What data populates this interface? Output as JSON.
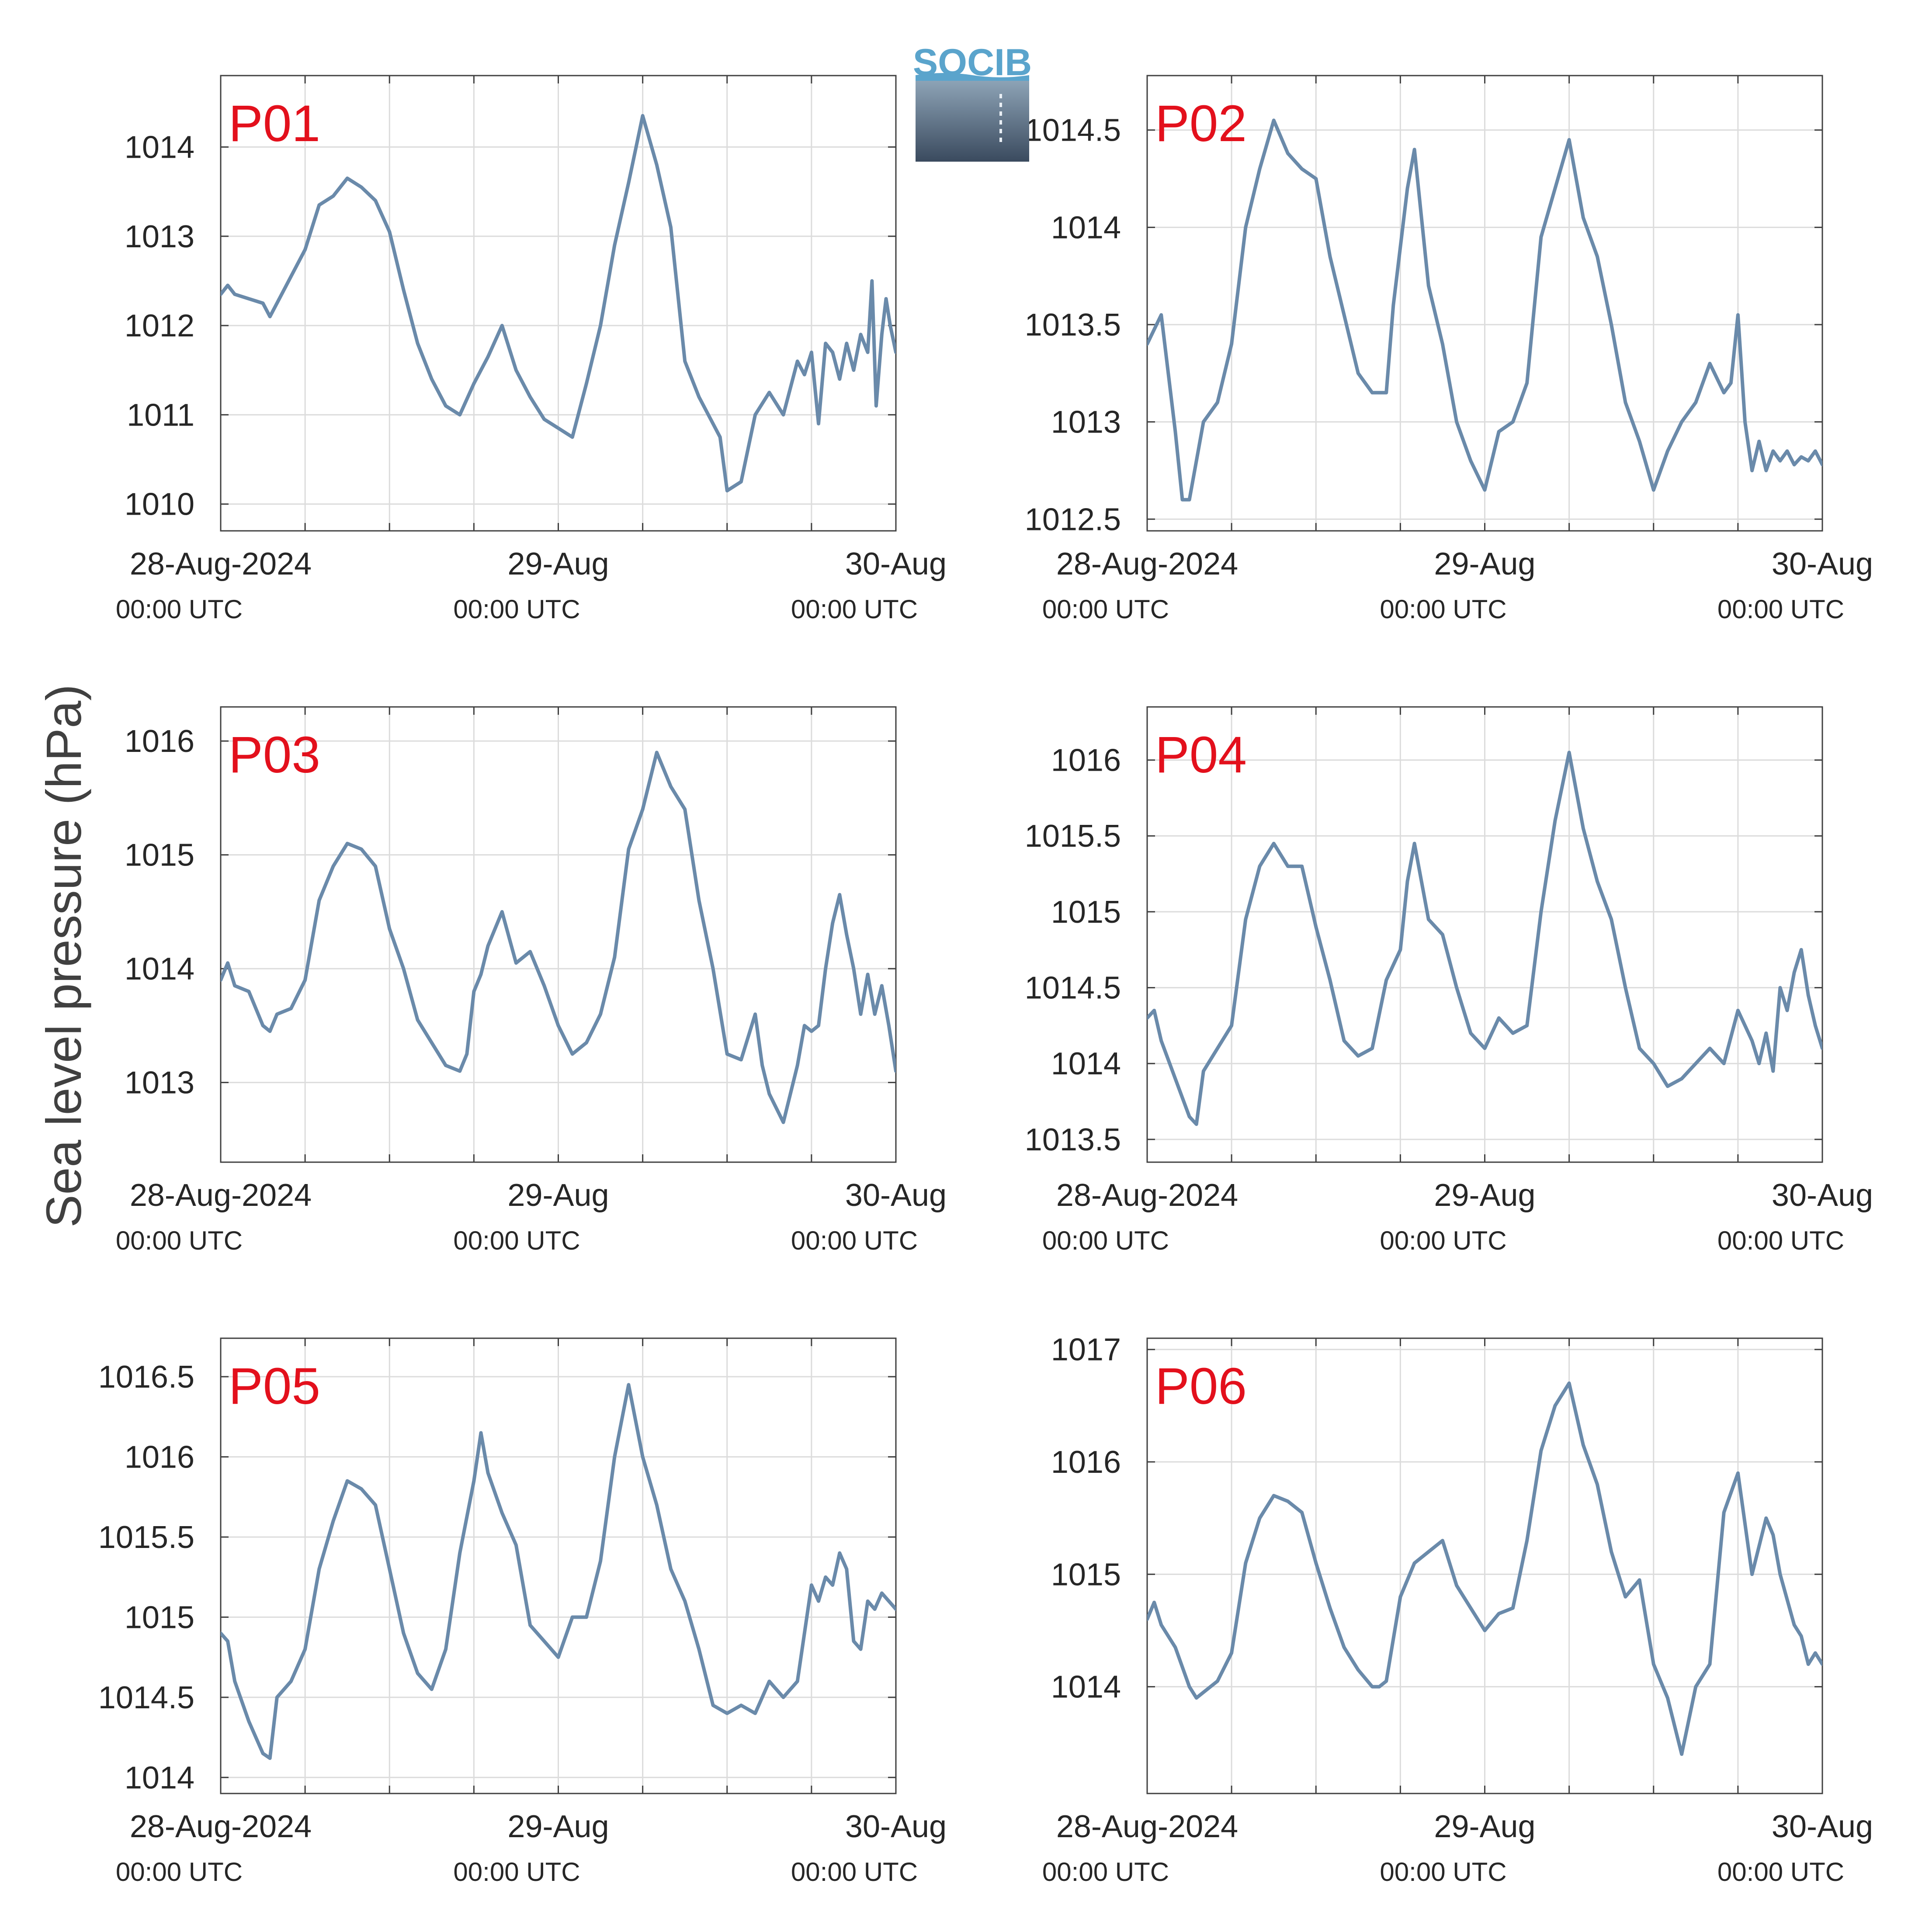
{
  "ylabel": "Sea level pressure (hPa)",
  "logo": {
    "text": "SOCIB"
  },
  "colors": {
    "line": "#6a8aaa",
    "panel_label": "#e3101c",
    "grid": "#dcdcdc",
    "axis": "#404040",
    "logo_text": "#5aa4cc",
    "logo_top": "#8da3b6",
    "logo_bottom": "#3a4a5e"
  },
  "chart_data": [
    {
      "type": "line",
      "panel": "P01",
      "grid": true,
      "xlim": [
        "2024-08-28T00:00",
        "2024-08-30T00:00"
      ],
      "xticks": [
        {
          "label": "28-Aug-2024",
          "sub": "00:00 UTC"
        },
        {
          "label": "29-Aug",
          "sub": "00:00 UTC"
        },
        {
          "label": "30-Aug",
          "sub": "00:00 UTC"
        }
      ],
      "ylim": [
        1009.7,
        1014.8
      ],
      "yticks": [
        1010,
        1011,
        1012,
        1013,
        1014
      ],
      "ytick_labels": [
        "1010",
        "1011",
        "1012",
        "1013",
        "1014"
      ],
      "x_hours": [
        0,
        0.5,
        1,
        2,
        3,
        3.5,
        4,
        5,
        6,
        7,
        8,
        9,
        10,
        11,
        12,
        13,
        14,
        15,
        16,
        17,
        18,
        19,
        20,
        21,
        22,
        23,
        24,
        25,
        26,
        27,
        28,
        29,
        30,
        31,
        32,
        33,
        34,
        35,
        35.5,
        36,
        37,
        38,
        39,
        40,
        41,
        41.5,
        42,
        42.5,
        43,
        43.5,
        44,
        44.5,
        45,
        45.5,
        46,
        46.3,
        46.6,
        47,
        47.3,
        47.6,
        48
      ],
      "values": [
        1012.35,
        1012.45,
        1012.35,
        1012.3,
        1012.25,
        1012.1,
        1012.25,
        1012.55,
        1012.85,
        1013.35,
        1013.45,
        1013.65,
        1013.55,
        1013.4,
        1013.05,
        1012.4,
        1011.8,
        1011.4,
        1011.1,
        1011.0,
        1011.35,
        1011.65,
        1012.0,
        1011.5,
        1011.2,
        1010.95,
        1010.85,
        1010.75,
        1011.35,
        1012.0,
        1012.9,
        1013.6,
        1014.35,
        1013.8,
        1013.1,
        1011.6,
        1011.2,
        1010.9,
        1010.75,
        1010.15,
        1010.25,
        1011.0,
        1011.25,
        1011.0,
        1011.6,
        1011.45,
        1011.7,
        1010.9,
        1011.8,
        1011.7,
        1011.4,
        1011.8,
        1011.5,
        1011.9,
        1011.7,
        1012.5,
        1011.1,
        1011.9,
        1012.3,
        1012.0,
        1011.7
      ]
    },
    {
      "type": "line",
      "panel": "P02",
      "grid": true,
      "xlim": [
        "2024-08-28T00:00",
        "2024-08-30T00:00"
      ],
      "xticks": [
        {
          "label": "28-Aug-2024",
          "sub": "00:00 UTC"
        },
        {
          "label": "29-Aug",
          "sub": "00:00 UTC"
        },
        {
          "label": "30-Aug",
          "sub": "00:00 UTC"
        }
      ],
      "ylim": [
        1012.44,
        1014.78
      ],
      "yticks": [
        1012.5,
        1013,
        1013.5,
        1014,
        1014.5
      ],
      "ytick_labels": [
        "1012.5",
        "1013",
        "1013.5",
        "1014",
        "1014.5"
      ],
      "x_hours": [
        0,
        1,
        2,
        2.5,
        3,
        4,
        5,
        6,
        7,
        8,
        9,
        10,
        11,
        12,
        13,
        14,
        15,
        16,
        17,
        17.5,
        18,
        18.5,
        19,
        20,
        21,
        22,
        23,
        24,
        25,
        26,
        27,
        28,
        29,
        30,
        31,
        32,
        33,
        34,
        35,
        36,
        37,
        38,
        39,
        40,
        41,
        41.5,
        42,
        42.5,
        43,
        43.5,
        44,
        44.5,
        45,
        45.5,
        46,
        46.5,
        47,
        47.5,
        48
      ],
      "values": [
        1013.4,
        1013.55,
        1012.95,
        1012.6,
        1012.6,
        1013.0,
        1013.1,
        1013.4,
        1014.0,
        1014.3,
        1014.55,
        1014.38,
        1014.3,
        1014.25,
        1013.85,
        1013.55,
        1013.25,
        1013.15,
        1013.15,
        1013.6,
        1013.9,
        1014.2,
        1014.4,
        1013.7,
        1013.4,
        1013.0,
        1012.8,
        1012.65,
        1012.95,
        1013.0,
        1013.2,
        1013.95,
        1014.2,
        1014.45,
        1014.05,
        1013.85,
        1013.5,
        1013.1,
        1012.9,
        1012.65,
        1012.85,
        1013.0,
        1013.1,
        1013.3,
        1013.15,
        1013.2,
        1013.55,
        1013.0,
        1012.75,
        1012.9,
        1012.75,
        1012.85,
        1012.8,
        1012.85,
        1012.78,
        1012.82,
        1012.8,
        1012.85,
        1012.78
      ]
    },
    {
      "type": "line",
      "panel": "P03",
      "grid": true,
      "xlim": [
        "2024-08-28T00:00",
        "2024-08-30T00:00"
      ],
      "xticks": [
        {
          "label": "28-Aug-2024",
          "sub": "00:00 UTC"
        },
        {
          "label": "29-Aug",
          "sub": "00:00 UTC"
        },
        {
          "label": "30-Aug",
          "sub": "00:00 UTC"
        }
      ],
      "ylim": [
        1012.3,
        1016.3
      ],
      "yticks": [
        1013,
        1014,
        1015,
        1016
      ],
      "ytick_labels": [
        "1013",
        "1014",
        "1015",
        "1016"
      ],
      "x_hours": [
        0,
        0.5,
        1,
        2,
        3,
        3.5,
        4,
        5,
        6,
        7,
        8,
        9,
        10,
        11,
        12,
        13,
        14,
        15,
        16,
        17,
        17.5,
        18,
        18.5,
        19,
        20,
        21,
        22,
        23,
        24,
        25,
        26,
        27,
        28,
        29,
        30,
        31,
        32,
        33,
        34,
        35,
        36,
        37,
        38,
        38.5,
        39,
        40,
        41,
        41.5,
        42,
        42.5,
        43,
        43.5,
        44,
        44.5,
        45,
        45.5,
        46,
        46.5,
        47,
        47.5,
        48
      ],
      "values": [
        1013.9,
        1014.05,
        1013.85,
        1013.8,
        1013.5,
        1013.45,
        1013.6,
        1013.65,
        1013.9,
        1014.6,
        1014.9,
        1015.1,
        1015.05,
        1014.9,
        1014.35,
        1014.0,
        1013.55,
        1013.35,
        1013.15,
        1013.1,
        1013.25,
        1013.8,
        1013.95,
        1014.2,
        1014.5,
        1014.05,
        1014.15,
        1013.85,
        1013.5,
        1013.25,
        1013.35,
        1013.6,
        1014.1,
        1015.05,
        1015.4,
        1015.9,
        1015.6,
        1015.4,
        1014.6,
        1014.0,
        1013.25,
        1013.2,
        1013.6,
        1013.15,
        1012.9,
        1012.65,
        1013.15,
        1013.5,
        1013.45,
        1013.5,
        1014.0,
        1014.4,
        1014.65,
        1014.3,
        1014.0,
        1013.6,
        1013.95,
        1013.6,
        1013.85,
        1013.5,
        1013.1
      ]
    },
    {
      "type": "line",
      "panel": "P04",
      "grid": true,
      "xlim": [
        "2024-08-28T00:00",
        "2024-08-30T00:00"
      ],
      "xticks": [
        {
          "label": "28-Aug-2024",
          "sub": "00:00 UTC"
        },
        {
          "label": "29-Aug",
          "sub": "00:00 UTC"
        },
        {
          "label": "30-Aug",
          "sub": "00:00 UTC"
        }
      ],
      "ylim": [
        1013.35,
        1016.35
      ],
      "yticks": [
        1013.5,
        1014,
        1014.5,
        1015,
        1015.5,
        1016
      ],
      "ytick_labels": [
        "1013.5",
        "1014",
        "1014.5",
        "1015",
        "1015.5",
        "1016"
      ],
      "x_hours": [
        0,
        0.5,
        1,
        2,
        3,
        3.5,
        4,
        5,
        6,
        7,
        8,
        9,
        10,
        11,
        12,
        13,
        14,
        15,
        16,
        17,
        18,
        18.5,
        19,
        20,
        21,
        22,
        23,
        24,
        25,
        26,
        27,
        28,
        29,
        30,
        31,
        32,
        33,
        34,
        35,
        36,
        37,
        38,
        39,
        40,
        41,
        42,
        43,
        43.5,
        44,
        44.5,
        45,
        45.5,
        46,
        46.5,
        47,
        47.5,
        48
      ],
      "values": [
        1014.3,
        1014.35,
        1014.15,
        1013.9,
        1013.65,
        1013.6,
        1013.95,
        1014.1,
        1014.25,
        1014.95,
        1015.3,
        1015.45,
        1015.3,
        1015.3,
        1014.9,
        1014.55,
        1014.15,
        1014.05,
        1014.1,
        1014.55,
        1014.75,
        1015.2,
        1015.45,
        1014.95,
        1014.85,
        1014.5,
        1014.2,
        1014.1,
        1014.3,
        1014.2,
        1014.25,
        1015.0,
        1015.6,
        1016.05,
        1015.55,
        1015.2,
        1014.95,
        1014.5,
        1014.1,
        1014.0,
        1013.85,
        1013.9,
        1014.0,
        1014.1,
        1014.0,
        1014.35,
        1014.15,
        1014.0,
        1014.2,
        1013.95,
        1014.5,
        1014.35,
        1014.6,
        1014.75,
        1014.45,
        1014.25,
        1014.1
      ]
    },
    {
      "type": "line",
      "panel": "P05",
      "grid": true,
      "xlim": [
        "2024-08-28T00:00",
        "2024-08-30T00:00"
      ],
      "xticks": [
        {
          "label": "28-Aug-2024",
          "sub": "00:00 UTC"
        },
        {
          "label": "29-Aug",
          "sub": "00:00 UTC"
        },
        {
          "label": "30-Aug",
          "sub": "00:00 UTC"
        }
      ],
      "ylim": [
        1013.9,
        1016.74
      ],
      "yticks": [
        1014,
        1014.5,
        1015,
        1015.5,
        1016,
        1016.5
      ],
      "ytick_labels": [
        "1014",
        "1014.5",
        "1015",
        "1015.5",
        "1016",
        "1016.5"
      ],
      "x_hours": [
        0,
        0.5,
        1,
        2,
        3,
        3.5,
        4,
        5,
        6,
        7,
        8,
        9,
        10,
        11,
        12,
        13,
        14,
        15,
        16,
        17,
        18,
        18.5,
        19,
        20,
        21,
        22,
        23,
        24,
        25,
        26,
        27,
        28,
        29,
        30,
        31,
        32,
        33,
        34,
        35,
        36,
        37,
        38,
        39,
        40,
        41,
        42,
        42.5,
        43,
        43.5,
        44,
        44.5,
        45,
        45.5,
        46,
        46.5,
        47,
        47.5,
        48
      ],
      "values": [
        1014.9,
        1014.85,
        1014.6,
        1014.35,
        1014.15,
        1014.12,
        1014.5,
        1014.6,
        1014.8,
        1015.3,
        1015.6,
        1015.85,
        1015.8,
        1015.7,
        1015.3,
        1014.9,
        1014.65,
        1014.55,
        1014.8,
        1015.4,
        1015.85,
        1016.15,
        1015.9,
        1015.65,
        1015.45,
        1014.95,
        1014.85,
        1014.75,
        1015.0,
        1015.0,
        1015.35,
        1016.0,
        1016.45,
        1016.0,
        1015.7,
        1015.3,
        1015.1,
        1014.8,
        1014.45,
        1014.4,
        1014.45,
        1014.4,
        1014.6,
        1014.5,
        1014.6,
        1015.2,
        1015.1,
        1015.25,
        1015.2,
        1015.4,
        1015.3,
        1014.85,
        1014.8,
        1015.1,
        1015.05,
        1015.15,
        1015.1,
        1015.05
      ]
    },
    {
      "type": "line",
      "panel": "P06",
      "grid": true,
      "xlim": [
        "2024-08-28T00:00",
        "2024-08-30T00:00"
      ],
      "xticks": [
        {
          "label": "28-Aug-2024",
          "sub": "00:00 UTC"
        },
        {
          "label": "29-Aug",
          "sub": "00:00 UTC"
        },
        {
          "label": "30-Aug",
          "sub": "00:00 UTC"
        }
      ],
      "ylim": [
        1013.05,
        1017.1
      ],
      "yticks": [
        1014,
        1015,
        1016,
        1017
      ],
      "ytick_labels": [
        "1014",
        "1015",
        "1016",
        "1017"
      ],
      "x_hours": [
        0,
        0.5,
        1,
        2,
        3,
        3.5,
        4,
        5,
        6,
        7,
        8,
        9,
        10,
        11,
        12,
        13,
        14,
        15,
        16,
        16.5,
        17,
        18,
        19,
        20,
        21,
        22,
        23,
        24,
        25,
        26,
        27,
        28,
        29,
        30,
        31,
        32,
        33,
        34,
        35,
        36,
        37,
        38,
        39,
        40,
        41,
        42,
        43,
        44,
        44.5,
        45,
        46,
        46.5,
        47,
        47.5,
        48
      ],
      "values": [
        1014.6,
        1014.75,
        1014.55,
        1014.35,
        1014.0,
        1013.9,
        1013.95,
        1014.05,
        1014.3,
        1015.1,
        1015.5,
        1015.7,
        1015.65,
        1015.55,
        1015.1,
        1014.7,
        1014.35,
        1014.15,
        1014.0,
        1014.0,
        1014.05,
        1014.8,
        1015.1,
        1015.2,
        1015.3,
        1014.9,
        1014.7,
        1014.5,
        1014.65,
        1014.7,
        1015.3,
        1016.1,
        1016.5,
        1016.7,
        1016.15,
        1015.8,
        1015.2,
        1014.8,
        1014.95,
        1014.2,
        1013.9,
        1013.4,
        1014.0,
        1014.2,
        1015.55,
        1015.9,
        1015.0,
        1015.5,
        1015.35,
        1015.0,
        1014.55,
        1014.45,
        1014.2,
        1014.3,
        1014.2
      ]
    }
  ]
}
